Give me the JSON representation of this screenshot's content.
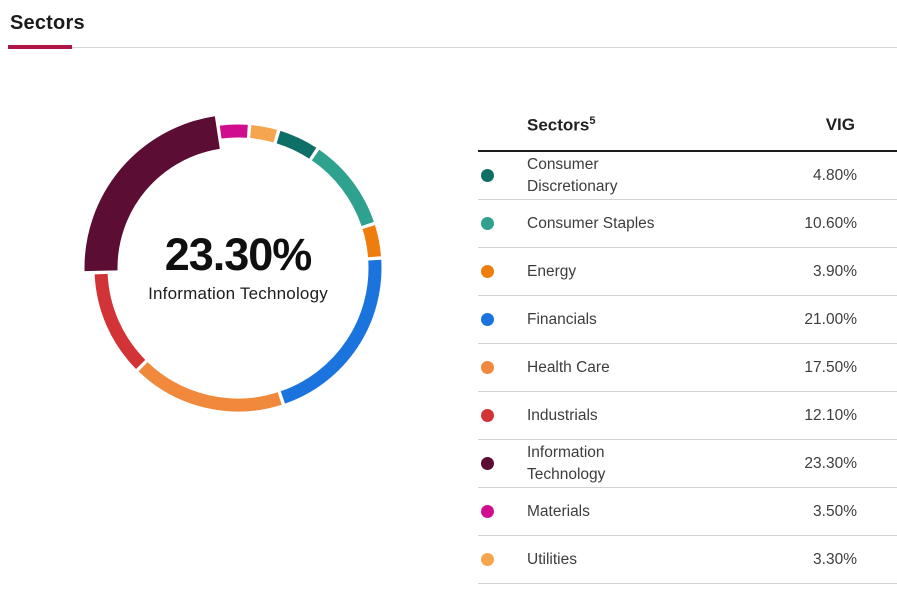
{
  "page": {
    "title": "Sectors"
  },
  "colors": {
    "accent": "#b01545",
    "header_rule_dark": "#1b1b1b",
    "row_rule_light": "#d2d2d2",
    "title_rule_gray": "#d6d6d6"
  },
  "chart_data": {
    "type": "pie",
    "subtype": "donut",
    "title": "Sectors",
    "series_name": "VIG",
    "categories": [
      "Consumer Discretionary",
      "Consumer Staples",
      "Energy",
      "Financials",
      "Health Care",
      "Industrials",
      "Information Technology",
      "Materials",
      "Utilities"
    ],
    "values": [
      4.8,
      10.6,
      3.9,
      21.0,
      17.5,
      12.1,
      23.3,
      3.5,
      3.3
    ],
    "colors": [
      "#0e6f66",
      "#2fa28f",
      "#ee7d0d",
      "#1b74dd",
      "#f0893b",
      "#d23337",
      "#5b0d33",
      "#cf0d8e",
      "#f5a54e"
    ],
    "unit": "%",
    "start_angle_deg": 16.5,
    "highlighted_category": "Information Technology",
    "center_label": {
      "value": "23.30%",
      "label": "Information Technology"
    }
  },
  "table": {
    "header": {
      "sectors_label": "Sectors",
      "sectors_superscript": "5",
      "value_label": "VIG"
    },
    "rows": [
      {
        "label": "Consumer Discretionary",
        "value": "4.80%",
        "color": "#0e6f66"
      },
      {
        "label": "Consumer Staples",
        "value": "10.60%",
        "color": "#2fa28f"
      },
      {
        "label": "Energy",
        "value": "3.90%",
        "color": "#ee7d0d"
      },
      {
        "label": "Financials",
        "value": "21.00%",
        "color": "#1b74dd"
      },
      {
        "label": "Health Care",
        "value": "17.50%",
        "color": "#f0893b"
      },
      {
        "label": "Industrials",
        "value": "12.10%",
        "color": "#d23337"
      },
      {
        "label": "Information Technology",
        "value": "23.30%",
        "color": "#5b0d33"
      },
      {
        "label": "Materials",
        "value": "3.50%",
        "color": "#cf0d8e"
      },
      {
        "label": "Utilities",
        "value": "3.30%",
        "color": "#f5a54e"
      }
    ]
  }
}
